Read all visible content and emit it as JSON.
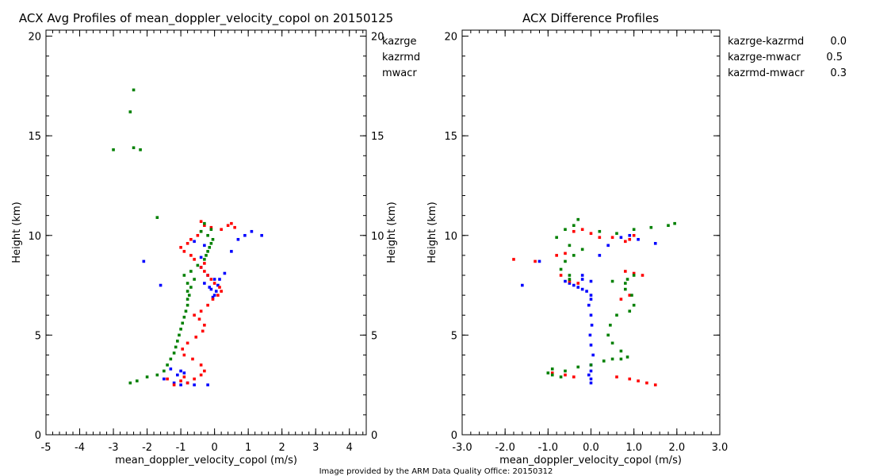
{
  "footer": "Image provided by the ARM Data Quality Office: 20150312",
  "colors": {
    "blue": "#0000ff",
    "red": "#ff0000",
    "green": "#008000",
    "footer": "#c00000"
  },
  "chart_data": [
    {
      "type": "scatter",
      "title": "ACX Avg Profiles of mean_doppler_velocity_copol on 20150125",
      "xlabel": "mean_doppler_velocity_copol (m/s)",
      "ylabel": "Height (km)",
      "xlim": [
        -5,
        4.5
      ],
      "ylim": [
        0,
        20.3
      ],
      "xticks": [
        "-5",
        "-4",
        "-3",
        "-2",
        "-1",
        "0",
        "1",
        "2",
        "3",
        "4"
      ],
      "yticks": [
        "0",
        "5",
        "10",
        "15",
        "20"
      ],
      "right_yticks": [
        "0",
        "5",
        "10",
        "15",
        "20"
      ],
      "legend": [
        "kazrge",
        "kazrmd",
        "mwacr"
      ],
      "series": [
        {
          "name": "kazrge",
          "color": "blue",
          "x": [
            -1.3,
            -1.0,
            -1.5,
            -1.1,
            -0.9,
            -0.3,
            -0.15,
            0.05,
            0.0,
            -0.1,
            0.1,
            -0.05,
            0.0,
            -0.2,
            0.15,
            0.3,
            -0.4,
            0.5,
            0.7,
            0.9,
            1.1,
            1.4,
            -0.6,
            -0.3,
            -2.1,
            -1.6,
            -0.4,
            -1.2,
            -1.0,
            -0.6,
            -0.2,
            -0.8
          ],
          "y": [
            3.3,
            3.2,
            2.8,
            3.0,
            3.1,
            7.6,
            7.4,
            7.2,
            7.0,
            7.3,
            7.5,
            6.9,
            7.8,
            8.0,
            7.8,
            8.1,
            8.9,
            9.2,
            9.8,
            10.0,
            10.2,
            10.0,
            9.7,
            9.5,
            8.7,
            7.5,
            8.4,
            2.6,
            2.5,
            2.5,
            2.5,
            2.6
          ]
        },
        {
          "name": "kazrmd",
          "color": "red",
          "x": [
            -0.8,
            -0.6,
            -0.4,
            -0.3,
            -0.4,
            -0.65,
            -0.9,
            -0.95,
            -0.8,
            -0.55,
            -0.35,
            -0.3,
            -0.45,
            -0.6,
            -0.4,
            -0.2,
            -0.05,
            0.1,
            0.2,
            0.15,
            0.0,
            -0.1,
            -0.2,
            -0.3,
            -0.4,
            -0.3,
            -0.6,
            -0.7,
            -0.9,
            -1.0,
            -0.8,
            -0.7,
            -0.5,
            -0.4,
            -0.3,
            -0.4,
            -0.1,
            0.2,
            0.4,
            0.5,
            0.6,
            -1.0,
            -1.2,
            -0.9,
            -1.4
          ],
          "y": [
            2.6,
            2.8,
            3.0,
            3.2,
            3.5,
            3.8,
            4.0,
            4.3,
            4.6,
            4.9,
            5.2,
            5.5,
            5.8,
            6.0,
            6.2,
            6.5,
            6.8,
            7.0,
            7.2,
            7.4,
            7.6,
            7.8,
            8.0,
            8.2,
            8.4,
            8.6,
            8.8,
            9.0,
            9.2,
            9.4,
            9.6,
            9.8,
            10.0,
            10.2,
            10.5,
            10.7,
            10.4,
            10.3,
            10.5,
            10.6,
            10.4,
            2.7,
            2.5,
            2.9,
            2.8
          ]
        },
        {
          "name": "mwacr",
          "color": "green",
          "x": [
            -2.5,
            -2.3,
            -2.0,
            -1.7,
            -1.5,
            -1.4,
            -1.3,
            -1.2,
            -1.15,
            -1.1,
            -1.05,
            -1.0,
            -0.95,
            -0.9,
            -0.85,
            -0.8,
            -0.8,
            -0.75,
            -0.8,
            -0.7,
            -0.8,
            -0.6,
            -0.9,
            -0.7,
            -0.5,
            -0.3,
            -0.25,
            -0.2,
            -0.15,
            -0.1,
            -0.05,
            -0.2,
            -0.4,
            -1.7,
            -3.0,
            -2.4,
            -2.5,
            -2.4,
            -2.2,
            -0.3,
            -0.1
          ],
          "y": [
            2.6,
            2.7,
            2.9,
            3.0,
            3.2,
            3.5,
            3.8,
            4.1,
            4.4,
            4.7,
            5.0,
            5.3,
            5.6,
            5.9,
            6.2,
            6.5,
            6.8,
            7.0,
            7.2,
            7.4,
            7.6,
            7.8,
            8.0,
            8.2,
            8.5,
            8.8,
            9.0,
            9.2,
            9.4,
            9.6,
            9.8,
            10.0,
            10.2,
            10.9,
            14.3,
            14.4,
            16.2,
            17.3,
            14.3,
            10.6,
            10.3
          ]
        }
      ]
    },
    {
      "type": "scatter",
      "title": "ACX Difference Profiles",
      "xlabel": "mean_doppler_velocity_copol (m/s)",
      "ylabel": "Height (km)",
      "xlim": [
        -3.0,
        3.0
      ],
      "ylim": [
        0,
        20.3
      ],
      "xticks": [
        "-3.0",
        "-2.0",
        "-1.0",
        "0.0",
        "1.0",
        "2.0",
        "3.0"
      ],
      "yticks": [
        "0",
        "5",
        "10",
        "15",
        "20"
      ],
      "legend": [
        {
          "label": "kazrge-kazrmd",
          "value": "0.0",
          "color": "blue"
        },
        {
          "label": "kazrge-mwacr",
          "value": "0.5",
          "color": "red"
        },
        {
          "label": "kazrmd-mwacr",
          "value": "0.3",
          "color": "green"
        }
      ],
      "series": [
        {
          "name": "kazrge-kazrmd",
          "color": "blue",
          "x": [
            0.0,
            -0.05,
            0.0,
            0.05,
            0.0,
            -0.02,
            0.02,
            0.0,
            -0.05,
            0.0,
            0.0,
            -0.1,
            -0.2,
            -0.3,
            -0.4,
            -0.5,
            -0.2,
            0.0,
            -0.2,
            0.2,
            0.4,
            0.7,
            0.9,
            1.1,
            1.5,
            -1.6,
            -1.2,
            -0.6,
            0.0,
            0.0
          ],
          "y": [
            2.6,
            3.0,
            3.5,
            4.0,
            4.5,
            5.0,
            5.5,
            6.0,
            6.5,
            6.8,
            7.0,
            7.2,
            7.3,
            7.4,
            7.5,
            7.6,
            7.8,
            7.7,
            8.0,
            9.0,
            9.5,
            9.9,
            10.0,
            9.8,
            9.6,
            7.5,
            8.7,
            7.7,
            2.8,
            3.2
          ]
        },
        {
          "name": "kazrge-mwacr",
          "color": "red",
          "x": [
            -1.8,
            -1.3,
            -0.8,
            -0.6,
            -0.4,
            -0.2,
            0.0,
            0.2,
            0.5,
            0.9,
            0.8,
            1.0,
            1.2,
            0.9,
            0.7,
            -0.3,
            -0.5,
            -0.7,
            -0.9,
            -0.6,
            -0.4,
            0.9,
            1.1,
            1.3,
            1.5,
            0.6,
            0.8,
            1.0
          ],
          "y": [
            8.8,
            8.7,
            9.0,
            9.1,
            10.2,
            10.3,
            10.1,
            9.9,
            9.9,
            9.8,
            9.7,
            10.0,
            8.0,
            7.0,
            6.8,
            7.6,
            7.7,
            8.0,
            3.1,
            3.0,
            2.9,
            2.8,
            2.7,
            2.6,
            2.5,
            2.9,
            8.2,
            8.1
          ]
        },
        {
          "name": "kazrmd-mwacr",
          "color": "green",
          "x": [
            -0.9,
            -0.6,
            -0.3,
            0.0,
            0.3,
            0.5,
            0.7,
            0.85,
            0.7,
            0.5,
            0.4,
            0.45,
            0.6,
            0.9,
            1.0,
            0.95,
            0.8,
            0.85,
            1.0,
            0.8,
            0.5,
            -0.5,
            -0.7,
            -0.6,
            -0.4,
            -0.2,
            -0.5,
            -0.8,
            -0.6,
            -0.4,
            0.2,
            0.6,
            1.0,
            1.4,
            1.8,
            1.95,
            -0.3,
            -0.5,
            -0.9,
            -0.7,
            -1.0
          ],
          "y": [
            3.0,
            3.2,
            3.4,
            3.5,
            3.7,
            3.8,
            3.8,
            3.9,
            4.2,
            4.6,
            5.0,
            5.5,
            6.0,
            6.2,
            6.5,
            7.0,
            7.3,
            7.8,
            8.0,
            7.6,
            7.7,
            7.8,
            8.3,
            8.7,
            9.0,
            9.3,
            9.5,
            9.9,
            10.3,
            10.5,
            10.2,
            10.1,
            10.3,
            10.4,
            10.5,
            10.6,
            10.8,
            8.0,
            3.3,
            2.9,
            3.1
          ]
        }
      ]
    }
  ]
}
